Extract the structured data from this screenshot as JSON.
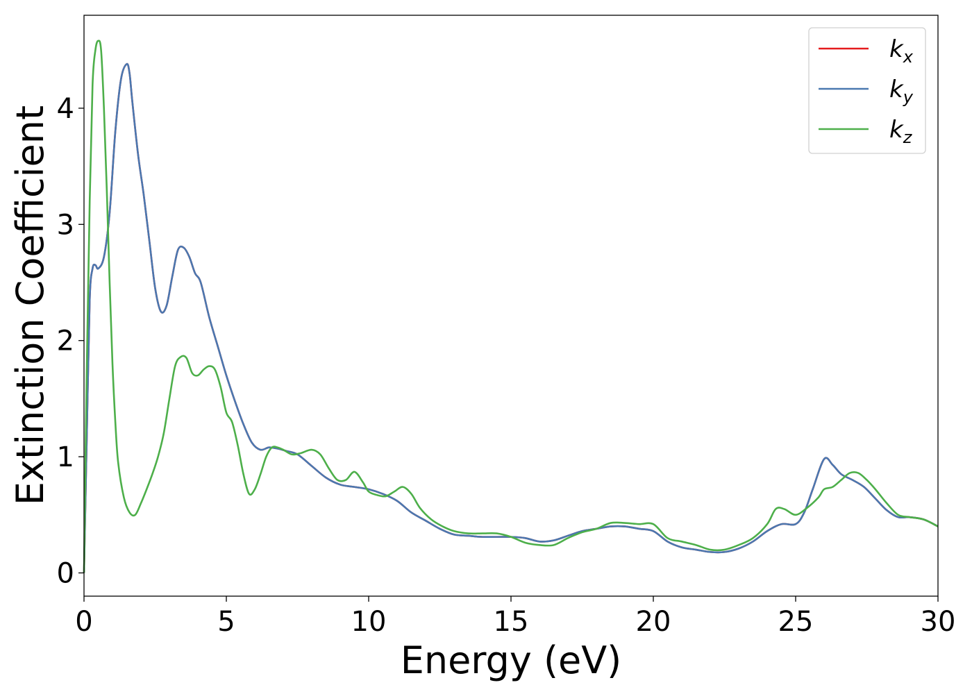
{
  "chart_data": {
    "type": "line",
    "title": "",
    "xlabel": "Energy (eV)",
    "ylabel": "Extinction Coefficient",
    "xlim": [
      0,
      30
    ],
    "ylim": [
      -0.2,
      4.8
    ],
    "xticks": [
      0,
      5,
      10,
      15,
      20,
      25,
      30
    ],
    "yticks": [
      0,
      1,
      2,
      3,
      4
    ],
    "grid": false,
    "legend_position": "top-right",
    "series": [
      {
        "name": "k_x",
        "color": "#e41a1c",
        "x": [
          0,
          0.1,
          0.2,
          0.3,
          0.4,
          0.5,
          0.7,
          0.9,
          1.1,
          1.3,
          1.5,
          1.6,
          1.7,
          1.9,
          2.1,
          2.3,
          2.5,
          2.7,
          2.9,
          3.1,
          3.3,
          3.5,
          3.7,
          3.9,
          4.1,
          4.4,
          4.7,
          5.0,
          5.3,
          5.6,
          5.9,
          6.2,
          6.5,
          6.8,
          7.1,
          7.5,
          8.0,
          8.5,
          9.0,
          9.5,
          10.0,
          10.5,
          11.0,
          11.5,
          12.0,
          12.5,
          13.0,
          13.5,
          14.0,
          15.0,
          15.5,
          16.0,
          16.5,
          17.0,
          17.5,
          18.0,
          18.5,
          19.0,
          19.5,
          20.0,
          20.5,
          21.0,
          21.5,
          22.0,
          22.5,
          23.0,
          23.5,
          24.0,
          24.5,
          25.0,
          25.3,
          25.6,
          26.0,
          26.3,
          26.6,
          27.0,
          27.4,
          27.8,
          28.2,
          28.6,
          29.0,
          29.5,
          30.0
        ],
        "y": [
          0,
          1.2,
          2.35,
          2.62,
          2.65,
          2.62,
          2.72,
          3.1,
          3.8,
          4.25,
          4.38,
          4.3,
          4.05,
          3.6,
          3.25,
          2.85,
          2.45,
          2.25,
          2.3,
          2.55,
          2.78,
          2.8,
          2.72,
          2.58,
          2.5,
          2.2,
          1.95,
          1.7,
          1.48,
          1.28,
          1.12,
          1.06,
          1.08,
          1.07,
          1.05,
          1.02,
          0.92,
          0.82,
          0.76,
          0.74,
          0.72,
          0.68,
          0.62,
          0.52,
          0.45,
          0.38,
          0.33,
          0.32,
          0.31,
          0.31,
          0.3,
          0.27,
          0.28,
          0.32,
          0.36,
          0.38,
          0.4,
          0.4,
          0.38,
          0.36,
          0.27,
          0.22,
          0.2,
          0.18,
          0.18,
          0.21,
          0.27,
          0.36,
          0.42,
          0.42,
          0.52,
          0.72,
          0.98,
          0.93,
          0.85,
          0.8,
          0.74,
          0.64,
          0.54,
          0.48,
          0.48,
          0.46,
          0.4
        ]
      },
      {
        "name": "k_y",
        "color": "#4a78b0",
        "x": [
          0,
          0.1,
          0.2,
          0.3,
          0.4,
          0.5,
          0.7,
          0.9,
          1.1,
          1.3,
          1.5,
          1.6,
          1.7,
          1.9,
          2.1,
          2.3,
          2.5,
          2.7,
          2.9,
          3.1,
          3.3,
          3.5,
          3.7,
          3.9,
          4.1,
          4.4,
          4.7,
          5.0,
          5.3,
          5.6,
          5.9,
          6.2,
          6.5,
          6.8,
          7.1,
          7.5,
          8.0,
          8.5,
          9.0,
          9.5,
          10.0,
          10.5,
          11.0,
          11.5,
          12.0,
          12.5,
          13.0,
          13.5,
          14.0,
          15.0,
          15.5,
          16.0,
          16.5,
          17.0,
          17.5,
          18.0,
          18.5,
          19.0,
          19.5,
          20.0,
          20.5,
          21.0,
          21.5,
          22.0,
          22.5,
          23.0,
          23.5,
          24.0,
          24.5,
          25.0,
          25.3,
          25.6,
          26.0,
          26.3,
          26.6,
          27.0,
          27.4,
          27.8,
          28.2,
          28.6,
          29.0,
          29.5,
          30.0
        ],
        "y": [
          0,
          1.2,
          2.35,
          2.62,
          2.65,
          2.62,
          2.72,
          3.1,
          3.8,
          4.25,
          4.38,
          4.3,
          4.05,
          3.6,
          3.25,
          2.85,
          2.45,
          2.25,
          2.3,
          2.55,
          2.78,
          2.8,
          2.72,
          2.58,
          2.5,
          2.2,
          1.95,
          1.7,
          1.48,
          1.28,
          1.12,
          1.06,
          1.08,
          1.07,
          1.05,
          1.02,
          0.92,
          0.82,
          0.76,
          0.74,
          0.72,
          0.68,
          0.62,
          0.52,
          0.45,
          0.38,
          0.33,
          0.32,
          0.31,
          0.31,
          0.3,
          0.27,
          0.28,
          0.32,
          0.36,
          0.38,
          0.4,
          0.4,
          0.38,
          0.36,
          0.27,
          0.22,
          0.2,
          0.18,
          0.18,
          0.21,
          0.27,
          0.36,
          0.42,
          0.42,
          0.52,
          0.72,
          0.98,
          0.93,
          0.85,
          0.8,
          0.74,
          0.64,
          0.54,
          0.48,
          0.48,
          0.46,
          0.4
        ]
      },
      {
        "name": "k_z",
        "color": "#4daf4a",
        "x": [
          0,
          0.1,
          0.2,
          0.3,
          0.4,
          0.5,
          0.6,
          0.7,
          0.8,
          0.9,
          1.0,
          1.1,
          1.2,
          1.4,
          1.6,
          1.8,
          2.0,
          2.2,
          2.4,
          2.6,
          2.8,
          3.0,
          3.2,
          3.4,
          3.6,
          3.8,
          4.0,
          4.2,
          4.4,
          4.6,
          4.8,
          5.0,
          5.2,
          5.4,
          5.6,
          5.8,
          6.0,
          6.2,
          6.4,
          6.6,
          6.8,
          7.0,
          7.3,
          7.6,
          8.0,
          8.3,
          8.6,
          8.9,
          9.2,
          9.5,
          9.8,
          10.0,
          10.3,
          10.6,
          10.9,
          11.2,
          11.5,
          11.8,
          12.2,
          12.6,
          13.0,
          13.5,
          14.0,
          14.5,
          15.0,
          15.5,
          16.0,
          16.5,
          17.0,
          17.5,
          18.0,
          18.5,
          19.0,
          19.5,
          20.0,
          20.5,
          21.0,
          21.5,
          22.0,
          22.5,
          23.0,
          23.5,
          24.0,
          24.3,
          24.6,
          25.0,
          25.4,
          25.8,
          26.0,
          26.3,
          26.6,
          26.9,
          27.2,
          27.5,
          27.8,
          28.2,
          28.6,
          29.0,
          29.5,
          30.0
        ],
        "y": [
          0,
          1.8,
          3.2,
          4.2,
          4.5,
          4.58,
          4.5,
          4.0,
          3.3,
          2.5,
          1.8,
          1.3,
          0.95,
          0.65,
          0.52,
          0.5,
          0.6,
          0.72,
          0.85,
          1.0,
          1.2,
          1.5,
          1.78,
          1.86,
          1.85,
          1.72,
          1.7,
          1.75,
          1.78,
          1.75,
          1.6,
          1.38,
          1.3,
          1.1,
          0.85,
          0.68,
          0.72,
          0.85,
          1.0,
          1.08,
          1.08,
          1.06,
          1.02,
          1.03,
          1.06,
          1.02,
          0.9,
          0.8,
          0.8,
          0.87,
          0.78,
          0.7,
          0.67,
          0.66,
          0.7,
          0.74,
          0.68,
          0.56,
          0.46,
          0.4,
          0.36,
          0.34,
          0.34,
          0.34,
          0.31,
          0.26,
          0.24,
          0.24,
          0.3,
          0.35,
          0.38,
          0.43,
          0.43,
          0.42,
          0.42,
          0.3,
          0.27,
          0.24,
          0.2,
          0.2,
          0.24,
          0.3,
          0.42,
          0.55,
          0.55,
          0.5,
          0.56,
          0.65,
          0.72,
          0.74,
          0.8,
          0.86,
          0.86,
          0.8,
          0.72,
          0.6,
          0.5,
          0.48,
          0.46,
          0.4
        ]
      }
    ]
  }
}
